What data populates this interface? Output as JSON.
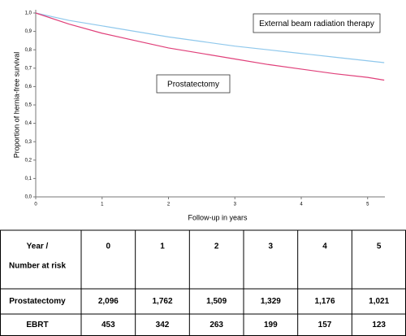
{
  "chart_data": {
    "type": "line",
    "x_label": "Follow-up in years",
    "y_label": "Proportion of hernia-free survival",
    "x": [
      0,
      0.5,
      1,
      1.5,
      2,
      2.5,
      3,
      3.5,
      4,
      4.5,
      5,
      5.25
    ],
    "series": [
      {
        "name": "External beam radiation therapy",
        "color": "#8fc8ec",
        "values": [
          1.0,
          0.96,
          0.93,
          0.9,
          0.87,
          0.845,
          0.82,
          0.8,
          0.78,
          0.76,
          0.74,
          0.73
        ]
      },
      {
        "name": "Prostatectomy",
        "color": "#e0407a",
        "values": [
          1.0,
          0.94,
          0.89,
          0.85,
          0.81,
          0.78,
          0.75,
          0.72,
          0.695,
          0.67,
          0.65,
          0.635
        ]
      }
    ],
    "xlim": [
      0,
      5.26
    ],
    "xticks": [
      0,
      1,
      2,
      3,
      4,
      5
    ],
    "ylim": [
      0,
      1.0
    ],
    "yticks": [
      {
        "value": 0,
        "label": "0,0"
      },
      {
        "value": 0.1,
        "label": "0,1"
      },
      {
        "value": 0.2,
        "label": "0,2"
      },
      {
        "value": 0.3,
        "label": "0,3"
      },
      {
        "value": 0.4,
        "label": "0,4"
      },
      {
        "value": 0.5,
        "label": "0,5"
      },
      {
        "value": 0.6,
        "label": "0,6"
      },
      {
        "value": 0.7,
        "label": "0,7"
      },
      {
        "value": 0.8,
        "label": "0,8"
      },
      {
        "value": 0.9,
        "label": "0,9"
      },
      {
        "value": 1.0,
        "label": "1,0"
      }
    ]
  },
  "table": {
    "corner": [
      "Year /",
      "Number at risk"
    ],
    "columns": [
      "0",
      "1",
      "2",
      "3",
      "4",
      "5"
    ],
    "rows": [
      [
        "Prostatectomy",
        "2,096",
        "1,762",
        "1,509",
        "1,329",
        "1,176",
        "1,021"
      ],
      [
        "EBRT",
        "453",
        "342",
        "263",
        "199",
        "157",
        "123"
      ]
    ]
  }
}
